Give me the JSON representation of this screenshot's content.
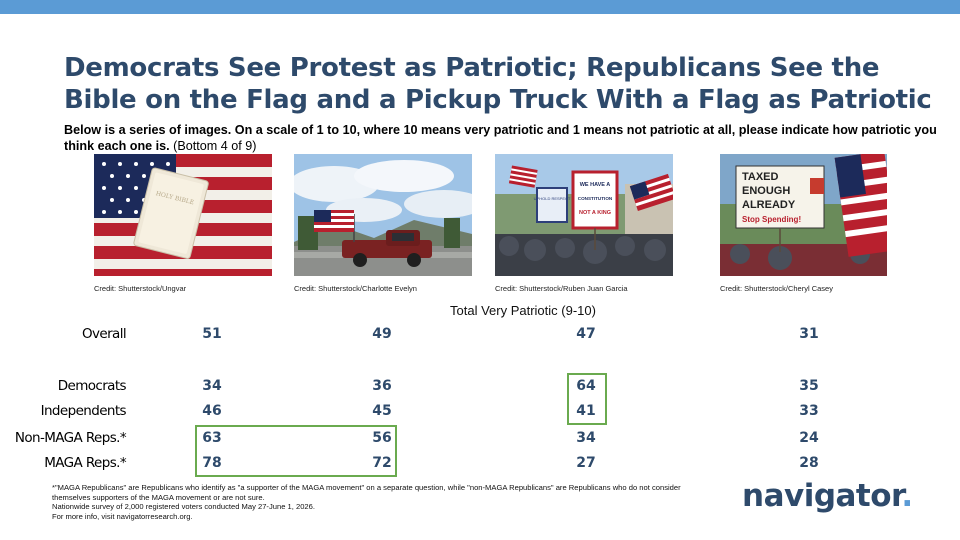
{
  "title": "Democrats See Protest as Patriotic; Republicans See the Bible on the Flag and a Pickup Truck With a Flag as Patriotic",
  "subtitle_bold": "Below is a series of images. On a scale of 1 to 10, where 10 means very patriotic and 1 means not patriotic at all, please indicate how patriotic you think each one is.",
  "subtitle_note": " (Bottom 4 of 9)",
  "images": [
    {
      "credit": "Credit: Shutterstock/Ungvar"
    },
    {
      "credit": "Credit: Shutterstock/Charlotte Evelyn"
    },
    {
      "credit": "Credit: Shutterstock/Ruben Juan Garcia",
      "sign1": "UPHOLD RESPECT",
      "sign2_a": "WE HAVE A",
      "sign2_b": "CONSTITUTION",
      "sign2_c": "NOT A KING"
    },
    {
      "credit": "Credit: Shutterstock/Cheryl Casey",
      "sign_l1": "TAXED",
      "sign_l2": "ENOUGH",
      "sign_l3": "ALREADY",
      "sign_l4": "Stop Spending!"
    }
  ],
  "bible_text": "HOLY BIBLE",
  "colors": {
    "accent_bar": "#5b9bd5",
    "title": "#2e4a6b",
    "values": "#2e4a6b",
    "highlight": "#6aaa4f"
  },
  "chart_data": {
    "type": "table",
    "title": "Total Very Patriotic (9-10)",
    "columns": [
      "Bible on the flag",
      "Pickup truck with a flag",
      "Protest",
      "Taxed Enough Already protest"
    ],
    "rows": [
      {
        "label": "Overall",
        "values": [
          51,
          49,
          47,
          31
        ]
      },
      {
        "label": "Democrats",
        "values": [
          34,
          36,
          64,
          35
        ]
      },
      {
        "label": "Independents",
        "values": [
          46,
          45,
          41,
          33
        ]
      },
      {
        "label": "Non-MAGA Reps.*",
        "values": [
          63,
          56,
          34,
          24
        ]
      },
      {
        "label": "MAGA Reps.*",
        "values": [
          78,
          72,
          27,
          28
        ]
      }
    ],
    "highlights": [
      {
        "rows": [
          "Non-MAGA Reps.*",
          "MAGA Reps.*"
        ],
        "columns": [
          0,
          1
        ]
      },
      {
        "rows": [
          "Democrats",
          "Independents"
        ],
        "columns": [
          2
        ]
      }
    ]
  },
  "footnote": {
    "line1": "*\"MAGA Republicans\" are Republicans who identify as \"a supporter of the MAGA movement\" on a separate question, while \"non-MAGA Republicans\" are Republicans who do not consider themselves supporters of the MAGA movement or are not sure.",
    "line2": "Nationwide survey of 2,000 registered voters conducted May 27-June 1, 2026.",
    "line3": "For more info, visit navigatorresearch.org."
  },
  "logo": {
    "text": "navigator",
    "dot": "."
  }
}
